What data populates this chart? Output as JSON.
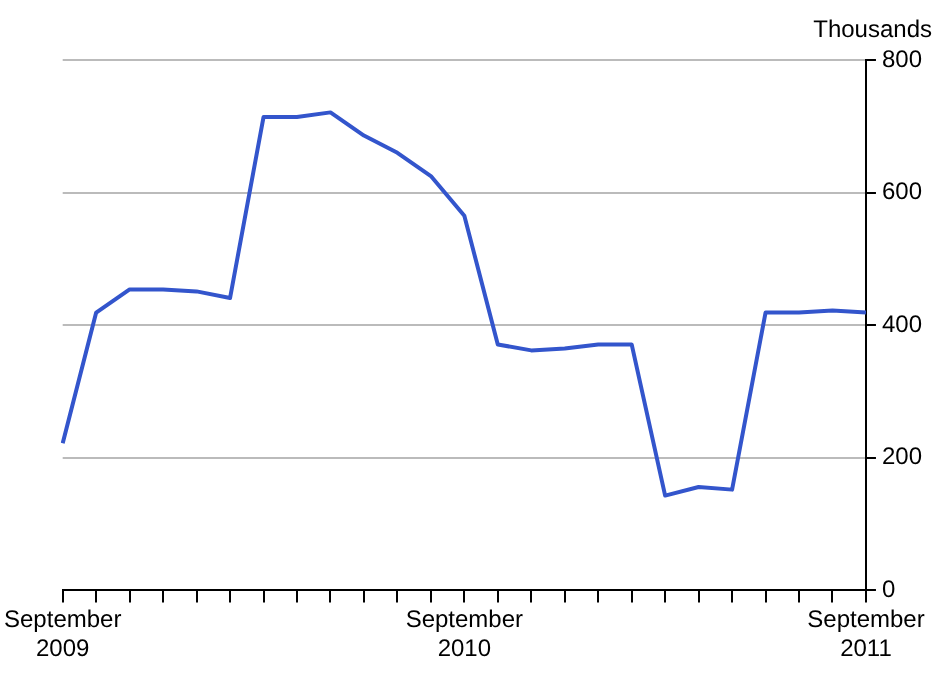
{
  "chart_data": {
    "type": "line",
    "ylabel": "Thousands",
    "categories": [
      "September 2009",
      null,
      null,
      null,
      null,
      null,
      null,
      null,
      null,
      null,
      null,
      null,
      "September 2010",
      null,
      null,
      null,
      null,
      null,
      null,
      null,
      null,
      null,
      null,
      null,
      "September 2011"
    ],
    "series": [
      {
        "color": "#3355cc",
        "values": [
          222,
          419,
          454,
          454,
          451,
          441,
          714,
          714,
          721,
          686,
          660,
          625,
          565,
          371,
          362,
          365,
          371,
          371,
          143,
          156,
          152,
          419,
          419,
          422,
          419
        ]
      }
    ],
    "ylim": [
      0,
      800
    ],
    "yticks": [
      0,
      200,
      400,
      600,
      800
    ],
    "grid": "y",
    "legend": false,
    "marker": "none",
    "line_style": "solid"
  }
}
